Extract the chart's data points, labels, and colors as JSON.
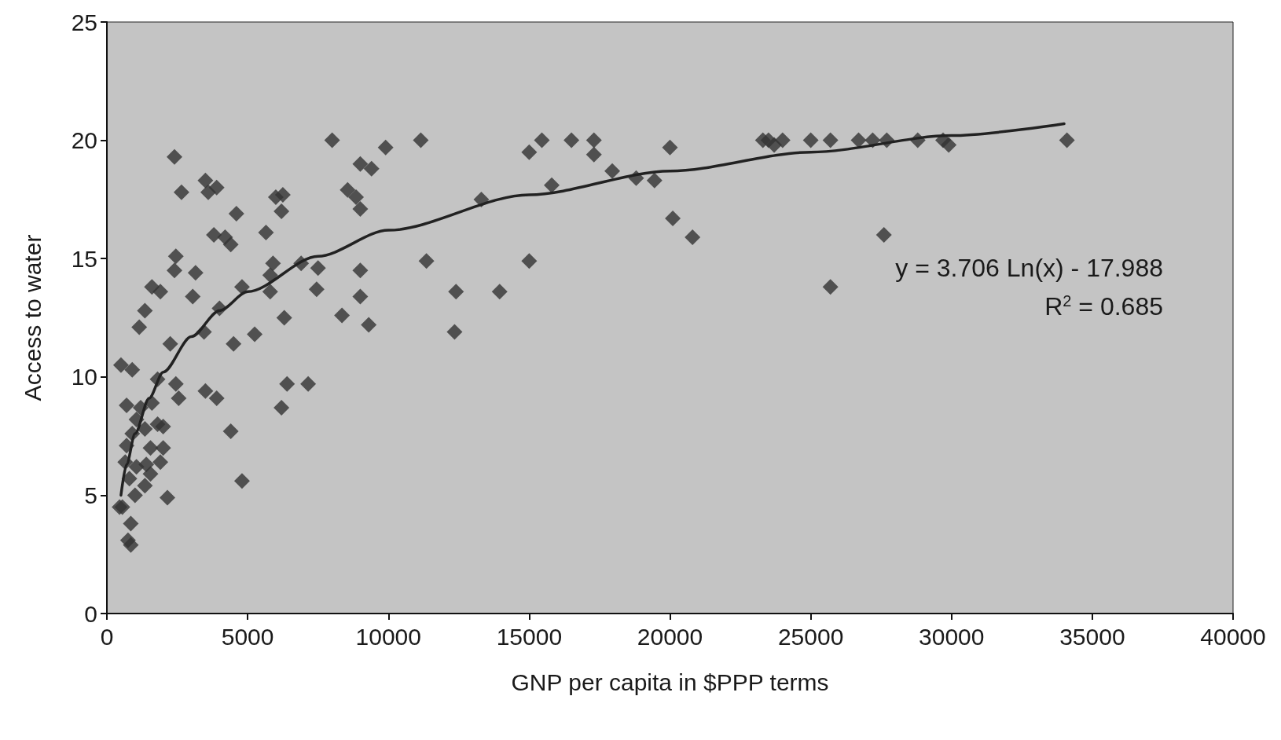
{
  "chart_data": {
    "type": "scatter",
    "xlabel": "GNP per capita in $PPP terms",
    "ylabel": "Access to water",
    "xlim": [
      0,
      40000
    ],
    "xticks": [
      0,
      5000,
      10000,
      15000,
      20000,
      25000,
      30000,
      35000,
      40000
    ],
    "ylim": [
      0,
      25
    ],
    "yticks": [
      0,
      5,
      10,
      15,
      20,
      25
    ],
    "grid": false,
    "marker": "diamond",
    "annotations": [
      "y = 3.706 Ln(x) - 17.988",
      "R$^{2}$ = 0.685"
    ],
    "series": [
      {
        "color": "#333333",
        "x": [
          23300,
          23500,
          23700,
          24000,
          25000,
          25700,
          26700,
          27200,
          27700,
          28800,
          29700,
          29900,
          34100,
          25700,
          27600,
          8000,
          9900,
          11150,
          15000,
          15450,
          16500,
          17300,
          17300,
          15800,
          17950,
          18800,
          19450,
          20000,
          20100,
          20800,
          13300,
          11350,
          12400,
          12350,
          13950,
          15000,
          9000,
          9400,
          8550,
          8850,
          9000,
          9000,
          9000,
          9300,
          8350,
          7500,
          7450,
          7150,
          2400,
          2650,
          3500,
          3600,
          3900,
          4600,
          3800,
          4200,
          4400,
          2450,
          2400,
          3150,
          3050,
          1600,
          1900,
          1350,
          1150,
          2250,
          3450,
          4000,
          4800,
          4500,
          5250,
          5800,
          5650,
          6000,
          6250,
          6200,
          5900,
          5800,
          6300,
          6900,
          4400,
          4800,
          3500,
          3900,
          6200,
          6400,
          500,
          900,
          1800,
          2450,
          2550,
          1600,
          700,
          1200,
          1800,
          2000,
          1550,
          2000,
          900,
          700,
          1400,
          1900,
          550,
          1000,
          1350,
          2150,
          1550,
          850,
          750,
          850,
          450,
          1050,
          800,
          650,
          1050,
          1350
        ],
        "values": [
          20,
          20,
          19.8,
          20,
          20,
          20,
          20,
          20,
          20,
          20,
          20,
          19.8,
          20,
          13.8,
          16.0,
          20,
          19.7,
          20,
          19.5,
          20,
          20,
          20,
          19.4,
          18.1,
          18.7,
          18.4,
          18.3,
          19.7,
          16.7,
          15.9,
          17.5,
          14.9,
          13.6,
          11.9,
          13.6,
          14.9,
          19.0,
          18.8,
          17.9,
          17.6,
          17.1,
          14.5,
          13.4,
          12.2,
          12.6,
          14.6,
          13.7,
          9.7,
          19.3,
          17.8,
          18.3,
          17.8,
          18.0,
          16.9,
          16.0,
          15.9,
          15.6,
          15.1,
          14.5,
          14.4,
          13.4,
          13.8,
          13.6,
          12.8,
          12.1,
          11.4,
          11.9,
          12.9,
          13.8,
          11.4,
          11.8,
          14.3,
          16.1,
          17.6,
          17.7,
          17.0,
          14.8,
          13.6,
          12.5,
          14.8,
          7.7,
          5.6,
          9.4,
          9.1,
          8.7,
          9.7,
          10.5,
          10.3,
          9.9,
          9.7,
          9.1,
          8.9,
          8.8,
          8.7,
          8.0,
          7.9,
          7.0,
          7.0,
          7.6,
          7.1,
          6.3,
          6.4,
          4.5,
          5.0,
          5.4,
          4.9,
          5.9,
          3.8,
          3.1,
          2.9,
          4.5,
          6.2,
          5.7,
          6.4,
          8.2,
          7.8
        ]
      },
      {
        "type": "line",
        "color": "#222222",
        "marker": "none",
        "x": [
          500,
          700,
          1000,
          1500,
          2000,
          3000,
          4000,
          5000,
          7500,
          10000,
          15000,
          20000,
          25000,
          30000,
          34000
        ],
        "values": [
          5.0,
          6.3,
          7.6,
          9.1,
          10.2,
          11.7,
          12.8,
          13.6,
          15.1,
          16.2,
          17.7,
          18.7,
          19.5,
          20.2,
          20.7
        ]
      }
    ]
  }
}
